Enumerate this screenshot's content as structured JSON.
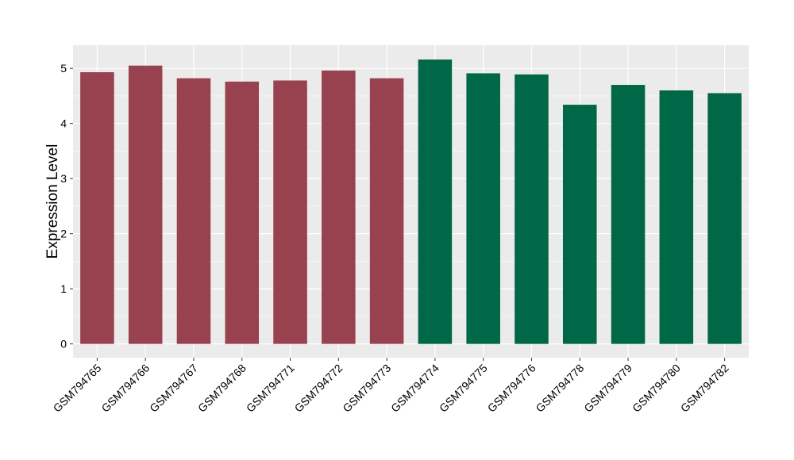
{
  "chart_data": {
    "type": "bar",
    "title": "",
    "xlabel": "",
    "ylabel": "Expression Level",
    "categories": [
      "GSM794765",
      "GSM794766",
      "GSM794767",
      "GSM794768",
      "GSM794771",
      "GSM794772",
      "GSM794773",
      "GSM794774",
      "GSM794775",
      "GSM794776",
      "GSM794778",
      "GSM794779",
      "GSM794780",
      "GSM794782"
    ],
    "values": [
      4.93,
      5.05,
      4.82,
      4.76,
      4.78,
      4.96,
      4.82,
      5.16,
      4.91,
      4.89,
      4.34,
      4.7,
      4.6,
      4.55
    ],
    "groups": [
      0,
      0,
      0,
      0,
      0,
      0,
      0,
      1,
      1,
      1,
      1,
      1,
      1,
      1
    ],
    "group_colors": [
      "#99424f",
      "#006846"
    ],
    "ylim": [
      -0.25,
      5.42
    ],
    "yticks": [
      0,
      1,
      2,
      3,
      4,
      5
    ],
    "grid": true,
    "legend": "none",
    "panel_background": "#ebebeb"
  }
}
